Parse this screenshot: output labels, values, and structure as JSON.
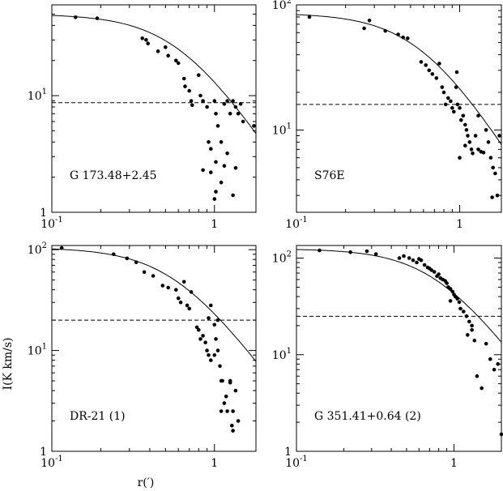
{
  "figure": {
    "ylabel": "I(K km/s)",
    "xlabel": "r(′)"
  },
  "chart_data": [
    {
      "type": "scatter",
      "label": "G 173.48+2.45",
      "xscale": "log",
      "yscale": "log",
      "xlim": [
        0.1,
        1.8
      ],
      "ylim": [
        1,
        60
      ],
      "xticks": [
        {
          "v": 0.1,
          "label": "10^-1"
        },
        {
          "v": 1,
          "label": "1"
        }
      ],
      "yticks": [
        {
          "v": 1,
          "label": "1"
        },
        {
          "v": 10,
          "label": "10^1"
        }
      ],
      "threshold": 8.7,
      "fit": {
        "I0": 50,
        "r0": 0.62,
        "n": 2.1
      },
      "points": [
        [
          0.14,
          47
        ],
        [
          0.19,
          46
        ],
        [
          0.36,
          31
        ],
        [
          0.38,
          30
        ],
        [
          0.39,
          28
        ],
        [
          0.45,
          24
        ],
        [
          0.5,
          26
        ],
        [
          0.52,
          22
        ],
        [
          0.58,
          20
        ],
        [
          0.6,
          19
        ],
        [
          0.65,
          14
        ],
        [
          0.66,
          12
        ],
        [
          0.7,
          11
        ],
        [
          0.72,
          9
        ],
        [
          0.73,
          8.3
        ],
        [
          0.8,
          15
        ],
        [
          0.82,
          10
        ],
        [
          0.85,
          9
        ],
        [
          0.9,
          8
        ],
        [
          0.92,
          4
        ],
        [
          0.95,
          3.5
        ],
        [
          1.0,
          9
        ],
        [
          1.02,
          7
        ],
        [
          1.05,
          5.5
        ],
        [
          1.1,
          4
        ],
        [
          1.15,
          8.5
        ],
        [
          1.2,
          9
        ],
        [
          1.25,
          7
        ],
        [
          1.3,
          9
        ],
        [
          1.35,
          8
        ],
        [
          1.4,
          7
        ],
        [
          1.45,
          8.5
        ],
        [
          1.5,
          6
        ],
        [
          0.85,
          2.3
        ],
        [
          0.95,
          2.2
        ],
        [
          1.0,
          1.3
        ],
        [
          1.02,
          1.5
        ],
        [
          1.1,
          1.8
        ],
        [
          1.15,
          2.5
        ],
        [
          1.3,
          1.4
        ],
        [
          1.35,
          2.4
        ],
        [
          1.75,
          5.5
        ],
        [
          1.02,
          2.7
        ],
        [
          1.2,
          3.2
        ]
      ]
    },
    {
      "type": "scatter",
      "label": "S76E",
      "xscale": "log",
      "yscale": "log",
      "xlim": [
        0.1,
        1.8
      ],
      "ylim": [
        2.2,
        100
      ],
      "xticks": [
        {
          "v": 0.1,
          "label": "10^-1"
        },
        {
          "v": 1,
          "label": "1"
        }
      ],
      "yticks": [
        {
          "v": 10,
          "label": "10^1"
        },
        {
          "v": 100,
          "label": "10^2"
        }
      ],
      "threshold": 16,
      "fit": {
        "I0": 86,
        "r0": 0.6,
        "n": 2.1
      },
      "points": [
        [
          0.12,
          80
        ],
        [
          0.26,
          65
        ],
        [
          0.28,
          75
        ],
        [
          0.35,
          62
        ],
        [
          0.42,
          58
        ],
        [
          0.45,
          55
        ],
        [
          0.48,
          54
        ],
        [
          0.58,
          35
        ],
        [
          0.62,
          33
        ],
        [
          0.65,
          30
        ],
        [
          0.68,
          28
        ],
        [
          0.72,
          26
        ],
        [
          0.75,
          34
        ],
        [
          0.78,
          22
        ],
        [
          0.8,
          20
        ],
        [
          0.82,
          16
        ],
        [
          0.85,
          18
        ],
        [
          0.88,
          17
        ],
        [
          0.9,
          15
        ],
        [
          0.92,
          14
        ],
        [
          0.95,
          22
        ],
        [
          0.97,
          16
        ],
        [
          1.0,
          15
        ],
        [
          1.02,
          12
        ],
        [
          1.05,
          13
        ],
        [
          1.08,
          11
        ],
        [
          1.1,
          10
        ],
        [
          1.12,
          9
        ],
        [
          1.15,
          8
        ],
        [
          1.18,
          7
        ],
        [
          1.2,
          6.5
        ],
        [
          1.25,
          9
        ],
        [
          1.3,
          7
        ],
        [
          1.35,
          6.7
        ],
        [
          1.4,
          6.6
        ],
        [
          1.45,
          10
        ],
        [
          1.5,
          8
        ],
        [
          1.55,
          6
        ],
        [
          1.6,
          5
        ],
        [
          1.65,
          4.5
        ],
        [
          1.7,
          3
        ],
        [
          1.58,
          2.9
        ],
        [
          1.75,
          9
        ],
        [
          1.0,
          6
        ],
        [
          1.08,
          7.5
        ],
        [
          1.3,
          13
        ],
        [
          0.96,
          29
        ]
      ]
    },
    {
      "type": "scatter",
      "label": "DR-21 (1)",
      "xscale": "log",
      "yscale": "log",
      "xlim": [
        0.1,
        1.8
      ],
      "ylim": [
        1,
        110
      ],
      "xticks": [
        {
          "v": 0.1,
          "label": "10^-1"
        },
        {
          "v": 1,
          "label": "1"
        }
      ],
      "yticks": [
        {
          "v": 1,
          "label": "1"
        },
        {
          "v": 10,
          "label": "10^1"
        },
        {
          "v": 100,
          "label": "10^2"
        }
      ],
      "threshold": 20,
      "fit": {
        "I0": 105,
        "r0": 0.58,
        "n": 2.2
      },
      "points": [
        [
          0.115,
          104
        ],
        [
          0.24,
          90
        ],
        [
          0.29,
          82
        ],
        [
          0.33,
          75
        ],
        [
          0.37,
          60
        ],
        [
          0.42,
          55
        ],
        [
          0.48,
          44
        ],
        [
          0.52,
          42
        ],
        [
          0.58,
          40
        ],
        [
          0.6,
          33
        ],
        [
          0.62,
          30
        ],
        [
          0.65,
          48
        ],
        [
          0.68,
          28
        ],
        [
          0.7,
          26
        ],
        [
          0.72,
          38
        ],
        [
          0.78,
          17
        ],
        [
          0.8,
          16
        ],
        [
          0.82,
          13
        ],
        [
          0.85,
          14
        ],
        [
          0.88,
          12
        ],
        [
          0.9,
          10
        ],
        [
          0.92,
          9
        ],
        [
          0.95,
          8
        ],
        [
          1.0,
          9
        ],
        [
          1.02,
          13
        ],
        [
          1.05,
          10
        ],
        [
          1.08,
          7
        ],
        [
          1.1,
          5
        ],
        [
          1.12,
          5
        ],
        [
          1.15,
          3
        ],
        [
          1.18,
          3.5
        ],
        [
          1.2,
          2.5
        ],
        [
          1.25,
          5
        ],
        [
          1.28,
          1.8
        ],
        [
          1.3,
          2.5
        ],
        [
          1.35,
          4
        ],
        [
          1.4,
          2
        ],
        [
          1.3,
          1.6
        ],
        [
          1.1,
          2.5
        ],
        [
          0.95,
          28
        ],
        [
          1.05,
          20
        ],
        [
          1.0,
          18
        ],
        [
          0.92,
          21
        ],
        [
          1.25,
          4.8
        ]
      ]
    },
    {
      "type": "scatter",
      "label": "G 351.41+0.64 (2)",
      "xscale": "log",
      "yscale": "log",
      "xlim": [
        0.1,
        2.0
      ],
      "ylim": [
        1,
        135
      ],
      "xticks": [
        {
          "v": 0.1,
          "label": "10^-1"
        },
        {
          "v": 1,
          "label": "1"
        }
      ],
      "yticks": [
        {
          "v": 1,
          "label": "1"
        },
        {
          "v": 10,
          "label": "10^1"
        },
        {
          "v": 100,
          "label": "10^2"
        }
      ],
      "threshold": 25,
      "fit": {
        "I0": 125,
        "r0": 0.78,
        "n": 2.2
      },
      "points": [
        [
          0.14,
          120
        ],
        [
          0.22,
          115
        ],
        [
          0.28,
          118
        ],
        [
          0.32,
          110
        ],
        [
          0.45,
          100
        ],
        [
          0.48,
          105
        ],
        [
          0.52,
          100
        ],
        [
          0.55,
          95
        ],
        [
          0.58,
          90
        ],
        [
          0.6,
          98
        ],
        [
          0.62,
          95
        ],
        [
          0.65,
          85
        ],
        [
          0.68,
          80
        ],
        [
          0.7,
          78
        ],
        [
          0.72,
          75
        ],
        [
          0.75,
          72
        ],
        [
          0.78,
          65
        ],
        [
          0.8,
          68
        ],
        [
          0.82,
          62
        ],
        [
          0.85,
          60
        ],
        [
          0.88,
          58
        ],
        [
          0.9,
          55
        ],
        [
          0.92,
          50
        ],
        [
          0.95,
          48
        ],
        [
          0.98,
          45
        ],
        [
          1.0,
          42
        ],
        [
          1.02,
          40
        ],
        [
          1.05,
          38
        ],
        [
          1.08,
          35
        ],
        [
          1.1,
          30
        ],
        [
          1.15,
          28
        ],
        [
          1.2,
          25
        ],
        [
          1.25,
          22
        ],
        [
          1.3,
          20
        ],
        [
          1.35,
          14
        ],
        [
          1.4,
          6
        ],
        [
          1.5,
          4.5
        ],
        [
          1.6,
          13
        ],
        [
          1.7,
          9
        ],
        [
          1.8,
          7
        ],
        [
          1.9,
          8
        ],
        [
          2.0,
          1.5
        ],
        [
          0.95,
          36
        ],
        [
          1.22,
          16
        ],
        [
          1.3,
          18
        ]
      ]
    }
  ]
}
